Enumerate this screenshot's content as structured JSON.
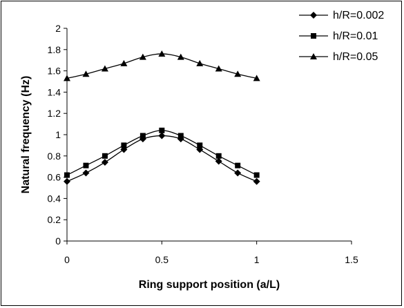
{
  "chart_data": {
    "type": "line",
    "title": "",
    "xlabel": "Ring support position (a/L)",
    "ylabel": "Natural frequency (Hz)",
    "xlim": [
      0,
      1.5
    ],
    "ylim": [
      0,
      2
    ],
    "x_ticks": [
      "0",
      "0.5",
      "1",
      "1.5"
    ],
    "y_ticks": [
      "0",
      "0.2",
      "0.4",
      "0.6",
      "0.8",
      "1",
      "1.2",
      "1.4",
      "1.6",
      "1.8",
      "2"
    ],
    "grid": false,
    "legend_position": "top-right",
    "x": [
      0,
      0.1,
      0.2,
      0.3,
      0.4,
      0.5,
      0.6,
      0.7,
      0.8,
      0.9,
      1.0
    ],
    "series": [
      {
        "name": "h/R=0.002",
        "marker": "diamond",
        "values": [
          0.56,
          0.64,
          0.74,
          0.86,
          0.96,
          0.99,
          0.96,
          0.86,
          0.75,
          0.64,
          0.56
        ]
      },
      {
        "name": "h/R=0.01",
        "marker": "square",
        "values": [
          0.62,
          0.71,
          0.8,
          0.9,
          0.99,
          1.04,
          0.99,
          0.9,
          0.8,
          0.71,
          0.62
        ]
      },
      {
        "name": "h/R=0.05",
        "marker": "triangle",
        "values": [
          1.53,
          1.57,
          1.62,
          1.67,
          1.73,
          1.76,
          1.73,
          1.67,
          1.62,
          1.57,
          1.53
        ]
      }
    ]
  }
}
